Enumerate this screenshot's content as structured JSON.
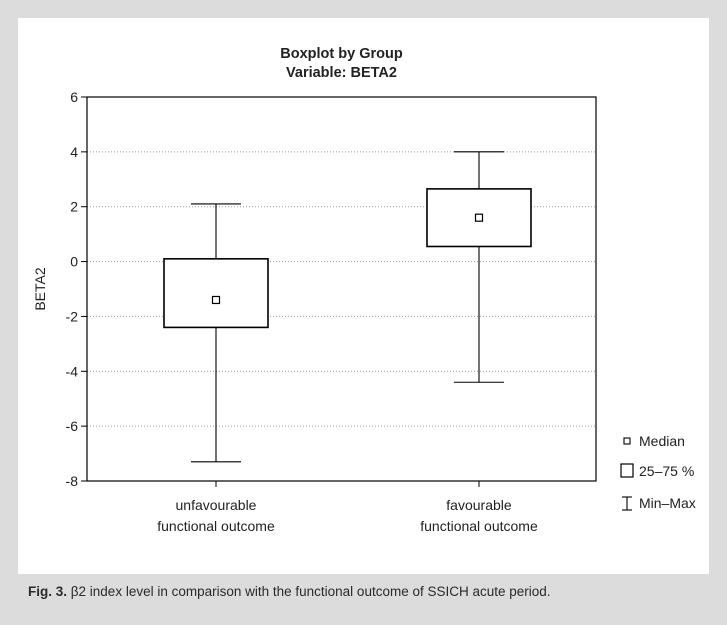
{
  "colors": {
    "page_background": "#dcdcdc",
    "panel_background": "#ffffff",
    "ink": "#000000",
    "grid": "#9a9a9a"
  },
  "chart_data": {
    "type": "boxplot",
    "title": "Boxplot by Group",
    "subtitle": "Variable: BETA2",
    "ylabel": "BETA2",
    "ylim": [
      -8,
      6
    ],
    "yticks": [
      -8,
      -6,
      -4,
      -2,
      0,
      2,
      4,
      6
    ],
    "grid": "horizontal dotted",
    "categories": [
      "unfavourable\nfunctional outcome",
      "favourable\nfunctional outcome"
    ],
    "series": [
      {
        "min": -7.3,
        "q1": -2.4,
        "median": -1.4,
        "q3": 0.1,
        "max": 2.1
      },
      {
        "min": -4.4,
        "q1": 0.55,
        "median": 1.6,
        "q3": 2.65,
        "max": 4.0
      }
    ],
    "legend": {
      "position": "right",
      "items": [
        "Median",
        "25–75 %",
        "Min–Max"
      ]
    }
  },
  "caption": {
    "label": "Fig. 3.",
    "text": " β2 index level in comparison with the functional outcome of SSICH acute period."
  }
}
